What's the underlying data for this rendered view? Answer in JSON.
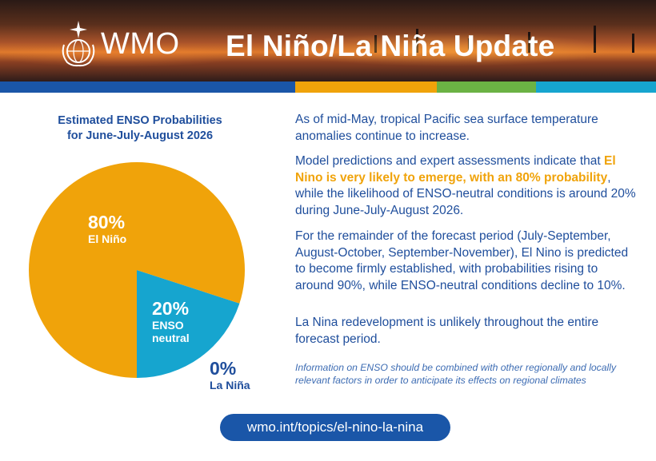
{
  "header": {
    "org": "WMO",
    "title": "El Niño/La Niña Update"
  },
  "color_bar": {
    "colors": [
      "#1a56a8",
      "#f0a30a",
      "#6bb244",
      "#16a5cf"
    ]
  },
  "chart_data": {
    "type": "pie",
    "title": "Estimated ENSO Probabilities",
    "subtitle": "for June-July-August 2026",
    "slices": [
      {
        "name": "El Niño",
        "value": 80,
        "label_value": "80%",
        "label_lines": [
          "El Niño"
        ],
        "color": "#f0a30a"
      },
      {
        "name": "ENSO neutral",
        "value": 20,
        "label_value": "20%",
        "label_lines": [
          "ENSO",
          "neutral"
        ],
        "color": "#16a5cf"
      },
      {
        "name": "La Niña",
        "value": 0,
        "label_value": "0%",
        "label_lines": [
          "La Niña"
        ],
        "color": "#1f4e9c"
      }
    ]
  },
  "body": {
    "p1": "As of mid-May, tropical Pacific sea surface temperature anomalies continue to increase.",
    "p2_before": "Model predictions and expert assessments indicate that ",
    "p2_highlight": "El Nino is very likely to emerge, with an 80% probability",
    "p2_after": ", while the likelihood of ENSO-neutral conditions is around 20% during June-July-August 2026.",
    "p3": "For the remainder of the forecast period (July-September, August-October, September-November), El Nino is predicted to become firmly established, with probabilities rising to around 90%, while ENSO-neutral conditions decline to 10%.",
    "p4": "La Nina redevelopment is unlikely throughout the entire forecast period.",
    "note": "Information on ENSO should be combined with other regionally and locally relevant factors in order to anticipate its effects on regional climates"
  },
  "footer": {
    "url": "wmo.int/topics/el-nino-la-nina"
  }
}
